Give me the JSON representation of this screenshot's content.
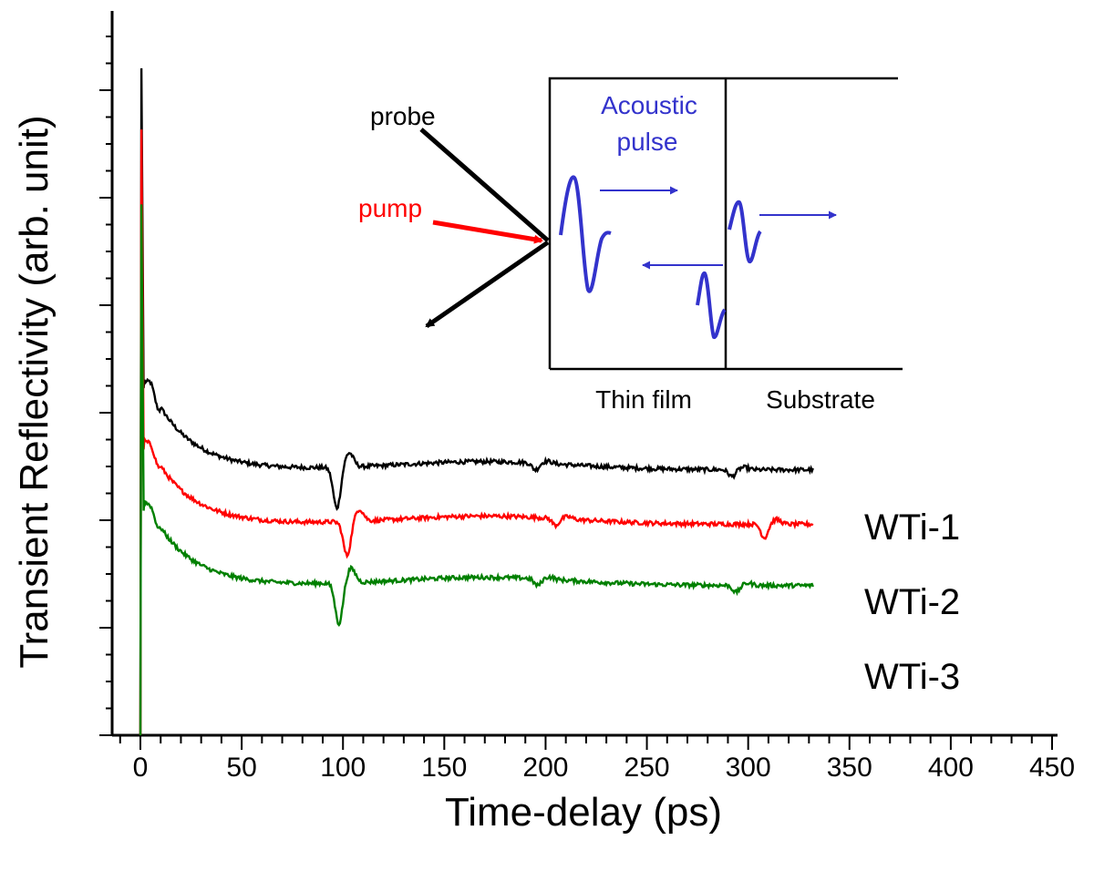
{
  "chart_data": {
    "type": "line",
    "xlabel": "Time-delay (ps)",
    "ylabel": "Transient Reflectivity (arb. unit)",
    "xlim": [
      -13,
      450
    ],
    "xticks": [
      0,
      50,
      100,
      150,
      200,
      250,
      300,
      350,
      400,
      450
    ],
    "xtick_labels": [
      "0",
      "50",
      "100",
      "150",
      "200",
      "250",
      "300",
      "350",
      "400",
      "450"
    ],
    "ylim": [
      0,
      10
    ],
    "y_tick_labels_shown": false,
    "grid": false,
    "series": [
      {
        "name": "WTi-1",
        "color": "#000000",
        "spike_peak": 9.8,
        "start": 5.3,
        "bump": 5.0,
        "baseline": 3.9,
        "dips": [
          [
            97,
            3.3
          ],
          [
            195,
            3.8
          ],
          [
            292,
            3.8
          ]
        ],
        "x_end": 332
      },
      {
        "name": "WTi-2",
        "color": "#ff0000",
        "spike_peak": 8.9,
        "start": 4.4,
        "bump": 4.2,
        "baseline": 3.1,
        "dips": [
          [
            102,
            2.6
          ],
          [
            205,
            3.0
          ],
          [
            308,
            2.9
          ]
        ],
        "x_end": 332
      },
      {
        "name": "WTi-3",
        "color": "#008000",
        "spike_peak": 7.8,
        "start": 3.5,
        "bump": 3.3,
        "baseline": 2.2,
        "dips": [
          [
            98,
            1.6
          ],
          [
            196,
            2.1
          ],
          [
            294,
            2.1
          ]
        ],
        "x_end": 332
      }
    ],
    "inset": {
      "labels": {
        "probe": "probe",
        "pump": "pump",
        "acoustic": "Acoustic",
        "pulse": "pulse",
        "thin_film": "Thin film",
        "substrate": "Substrate"
      },
      "colors": {
        "probe": "#000000",
        "pump": "#ff0000",
        "acoustic": "#3333cc"
      }
    }
  }
}
